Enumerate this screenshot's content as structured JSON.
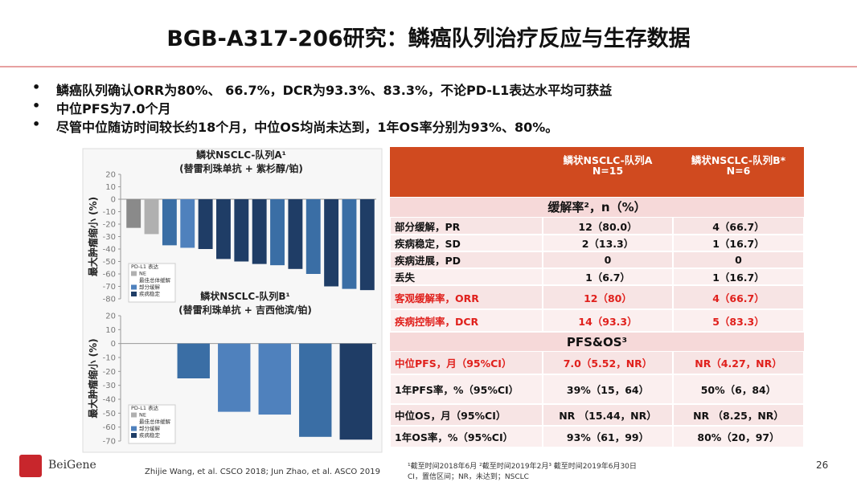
{
  "header": {
    "title": "BGB-A317-206研究：鳞癌队列治疗反应与生存数据"
  },
  "bullets": [
    "鳞癌队列确认ORR为80%、 66.7%，DCR为93.3%、83.3%，不论PD-L1表达水平均可获益",
    "中位PFS为7.0个月",
    "尽管中位随访时间较长约18个月，中位OS均尚未达到，1年OS率分别为93%、80%。"
  ],
  "chart_data": [
    {
      "type": "bar",
      "title": "鳞状NSCLC-队列A¹",
      "subtitle": "(替雷利珠单抗 + 紫杉醇/铂)",
      "y_label": "最大肿瘤缩小 (%)",
      "values": [
        -23,
        -28,
        -37,
        -39,
        -40,
        -48,
        -50,
        -52,
        -53,
        -56,
        -60,
        -70,
        -72,
        -73
      ],
      "colors": [
        "#8a8a8a",
        "#b0b0b0",
        "#3a6ea5",
        "#4f81bd",
        "#1f3d66",
        "#1f3d66",
        "#1f3d66",
        "#1f3d66",
        "#3a6ea5",
        "#1f3d66",
        "#3a6ea5",
        "#1f3d66",
        "#3a6ea5",
        "#1f3d66"
      ],
      "ylim": [
        -80,
        20
      ],
      "yticks": [
        20,
        10,
        0,
        -10,
        -20,
        -30,
        -40,
        -50,
        -60,
        -70,
        -80
      ],
      "legend": [
        "PD-L1 表达",
        "NE",
        "最佳总体缓解",
        "部分缓解",
        "疾病稳定"
      ]
    },
    {
      "type": "bar",
      "title": "鳞状NSCLC-队列B¹",
      "subtitle": "(替雷利珠单抗 + 吉西他滨/铂)",
      "y_label": "最大肿瘤缩小 (%)",
      "values": [
        -25,
        -49,
        -51,
        -67,
        -69
      ],
      "colors": [
        "#3a6ea5",
        "#4f81bd",
        "#4f81bd",
        "#3a6ea5",
        "#1f3d66"
      ],
      "ylim": [
        -70,
        20
      ],
      "yticks": [
        20,
        10,
        0,
        -10,
        -20,
        -30,
        -40,
        -50,
        -60,
        -70
      ],
      "legend": [
        "PD-L1 表达",
        "NE",
        "最佳总体缓解",
        "部分缓解",
        "疾病稳定"
      ]
    }
  ],
  "table": {
    "columns": [
      [
        "鳞状NSCLC-队列A",
        "N=15"
      ],
      [
        "鳞状NSCLC-队列B*",
        "N=6"
      ]
    ],
    "sections": [
      {
        "title": "缓解率²，n（%）",
        "highlight_rows": [
          4,
          5
        ],
        "rows": [
          [
            "部分缓解，PR",
            "12（80.0）",
            "4（66.7）"
          ],
          [
            "疾病稳定，SD",
            "2（13.3）",
            "1（16.7）"
          ],
          [
            "疾病进展，PD",
            "0",
            "0"
          ],
          [
            "丢失",
            "1（6.7）",
            "1（16.7）"
          ],
          [
            "客观缓解率，ORR",
            "12（80）",
            "4（66.7）"
          ],
          [
            "疾病控制率，DCR",
            "14（93.3）",
            "5（83.3）"
          ]
        ]
      },
      {
        "title": "PFS&OS³",
        "highlight_rows": [
          0
        ],
        "rows": [
          [
            "中位PFS，月（95%CI）",
            "7.0（5.52，NR）",
            "NR（4.27，NR）"
          ],
          [
            "1年PFS率，%（95%CI）",
            "39%（15，64）",
            "50%（6，84）"
          ],
          [
            "中位OS，月（95%CI）",
            "NR （15.44，NR）",
            "NR （8.25，NR）"
          ],
          [
            "1年OS率，%（95%CI）",
            "93%（61，99）",
            "80%（20，97）"
          ]
        ]
      }
    ]
  },
  "footer": {
    "logo": "BeiGene",
    "citation": "Zhijie Wang, et al. CSCO 2018; Jun Zhao, et al. ASCO 2019",
    "notes": [
      "¹截至时间2018年6月 ²截至时间2019年2月³ 截至时间2019年6月30日",
      "CI，置信区间；NR，未达到；NSCLC"
    ],
    "page": "26"
  }
}
